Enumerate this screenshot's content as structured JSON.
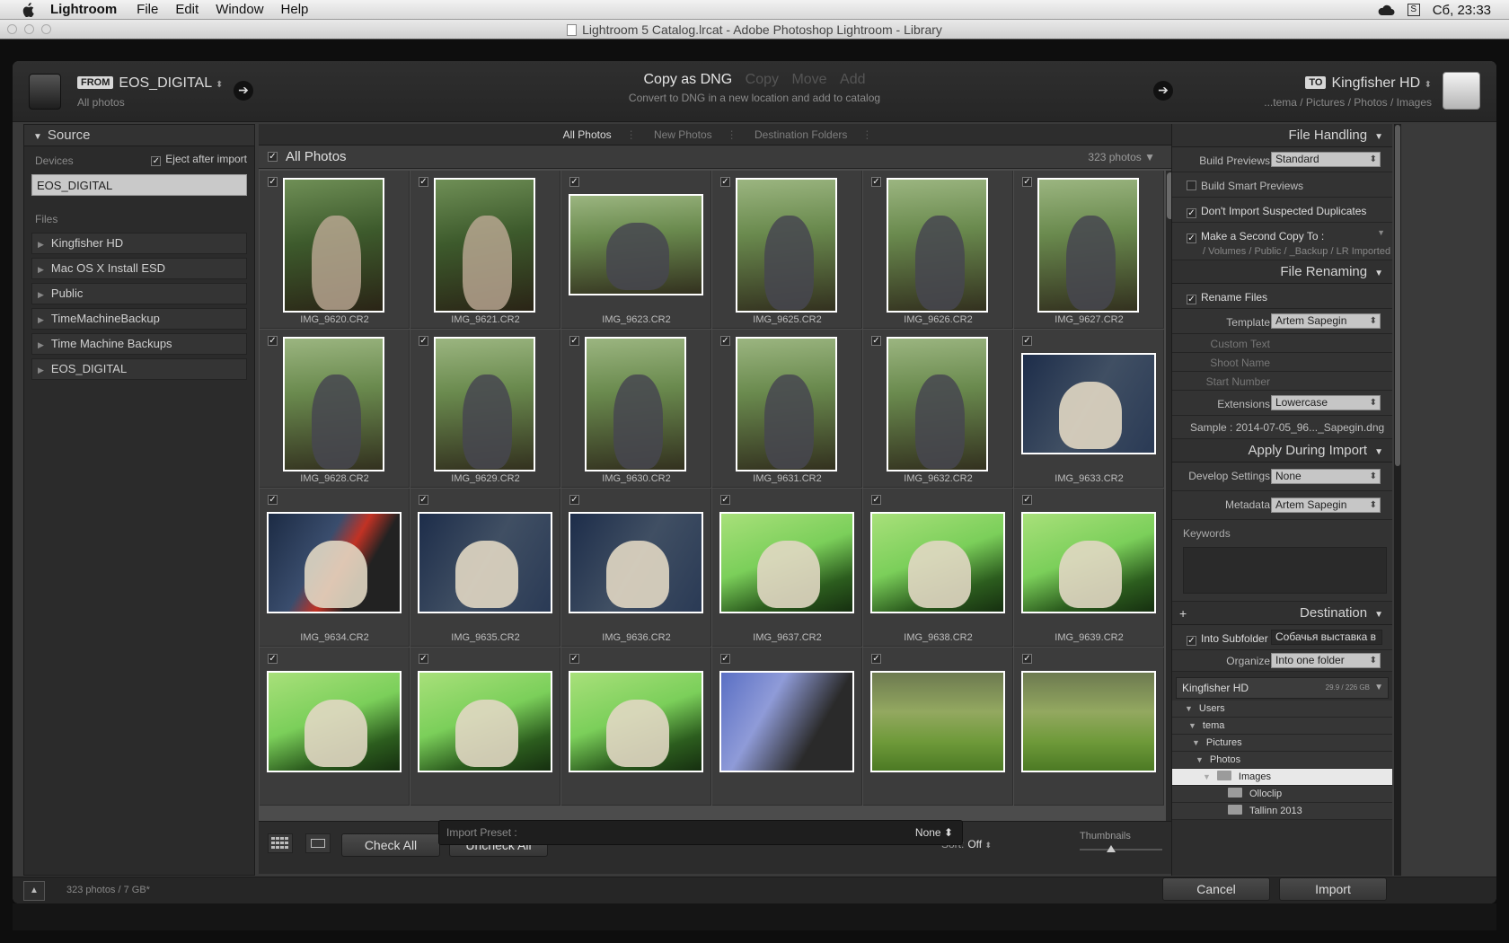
{
  "menubar": {
    "app": "Lightroom",
    "items": [
      "File",
      "Edit",
      "Window",
      "Help"
    ],
    "clock": "Сб, 23:33"
  },
  "window_title": "Lightroom 5 Catalog.lrcat - Adobe Photoshop Lightroom - Library",
  "topbar": {
    "from_tag": "FROM",
    "from_name": "EOS_DIGITAL",
    "from_sub": "All photos",
    "to_tag": "TO",
    "to_name": "Kingfisher HD",
    "to_path": "...tema / Pictures / Photos / Images",
    "modes": [
      "Copy as DNG",
      "Copy",
      "Move",
      "Add"
    ],
    "active_mode": "Copy as DNG",
    "mode_desc": "Convert to DNG in a new location and add to catalog"
  },
  "source": {
    "title": "Source",
    "devices_label": "Devices",
    "eject_label": "Eject after import",
    "eject_checked": true,
    "device": "EOS_DIGITAL",
    "files_label": "Files",
    "files": [
      "Kingfisher HD",
      "Mac OS X Install ESD",
      "Public",
      "TimeMachineBackup",
      "Time Machine Backups",
      "EOS_DIGITAL"
    ]
  },
  "grid": {
    "tabs": [
      "All Photos",
      "New Photos",
      "Destination Folders"
    ],
    "active_tab": "All Photos",
    "header": "All Photos",
    "count": "323 photos",
    "photos": [
      {
        "name": "IMG_9620.CR2",
        "orient": "p",
        "scene": "c-park",
        "subject": "woman"
      },
      {
        "name": "IMG_9621.CR2",
        "orient": "p",
        "scene": "c-park",
        "subject": "woman"
      },
      {
        "name": "IMG_9623.CR2",
        "orient": "l",
        "scene": "c-park2",
        "subject": "dog-dark"
      },
      {
        "name": "IMG_9625.CR2",
        "orient": "p",
        "scene": "c-park2",
        "subject": "dog-dark"
      },
      {
        "name": "IMG_9626.CR2",
        "orient": "p",
        "scene": "c-park2",
        "subject": "dog-dark"
      },
      {
        "name": "IMG_9627.CR2",
        "orient": "p",
        "scene": "c-park2",
        "subject": "dog-dark"
      },
      {
        "name": "IMG_9628.CR2",
        "orient": "p",
        "scene": "c-park2",
        "subject": "dog-dark"
      },
      {
        "name": "IMG_9629.CR2",
        "orient": "p",
        "scene": "c-park2",
        "subject": "dog-dark"
      },
      {
        "name": "IMG_9630.CR2",
        "orient": "p",
        "scene": "c-park2",
        "subject": "dog-dark"
      },
      {
        "name": "IMG_9631.CR2",
        "orient": "p",
        "scene": "c-park2",
        "subject": "dog-dark"
      },
      {
        "name": "IMG_9632.CR2",
        "orient": "p",
        "scene": "c-park2",
        "subject": "dog-dark"
      },
      {
        "name": "IMG_9633.CR2",
        "orient": "l",
        "scene": "c-blue",
        "subject": "dog-white"
      },
      {
        "name": "IMG_9634.CR2",
        "orient": "l",
        "scene": "c-red",
        "subject": "dog-white"
      },
      {
        "name": "IMG_9635.CR2",
        "orient": "l",
        "scene": "c-blue",
        "subject": "dog-white"
      },
      {
        "name": "IMG_9636.CR2",
        "orient": "l",
        "scene": "c-blue",
        "subject": "dog-white"
      },
      {
        "name": "IMG_9637.CR2",
        "orient": "l",
        "scene": "c-green",
        "subject": "dog-white"
      },
      {
        "name": "IMG_9638.CR2",
        "orient": "l",
        "scene": "c-green",
        "subject": "dog-white"
      },
      {
        "name": "IMG_9639.CR2",
        "orient": "l",
        "scene": "c-green",
        "subject": "dog-white"
      },
      {
        "name": "",
        "orient": "l",
        "scene": "c-green",
        "subject": "dog-white"
      },
      {
        "name": "",
        "orient": "l",
        "scene": "c-green",
        "subject": "dog-white"
      },
      {
        "name": "",
        "orient": "l",
        "scene": "c-green",
        "subject": "dog-white"
      },
      {
        "name": "",
        "orient": "l",
        "scene": "c-hand",
        "subject": "none"
      },
      {
        "name": "",
        "orient": "l",
        "scene": "c-lawn",
        "subject": "none"
      },
      {
        "name": "",
        "orient": "l",
        "scene": "c-lawn",
        "subject": "none"
      }
    ],
    "check_all": "Check All",
    "uncheck_all": "Uncheck All",
    "sort_label": "Sort:",
    "sort_value": "Off",
    "thumbnails_label": "Thumbnails"
  },
  "right": {
    "file_handling": "File Handling",
    "build_previews_label": "Build Previews",
    "build_previews_value": "Standard",
    "smart_previews": "Build Smart Previews",
    "no_duplicates": "Don't Import Suspected Duplicates",
    "second_copy": "Make a Second Copy To :",
    "second_copy_path": "/ Volumes / Public / _Backup / LR Imported",
    "file_renaming": "File Renaming",
    "rename_files": "Rename Files",
    "template_label": "Template",
    "template_value": "Artem Sapegin",
    "custom_text": "Custom Text",
    "shoot_name": "Shoot Name",
    "start_number": "Start Number",
    "extensions_label": "Extensions",
    "extensions_value": "Lowercase",
    "sample_label": "Sample :",
    "sample_value": "2014-07-05_96..._Sapegin.dng",
    "apply_during_import": "Apply During Import",
    "develop_label": "Develop Settings",
    "develop_value": "None",
    "metadata_label": "Metadata",
    "metadata_value": "Artem Sapegin",
    "keywords_label": "Keywords",
    "destination": "Destination",
    "into_subfolder": "Into Subfolder",
    "subfolder_value": "Собачья выставка в",
    "organize_label": "Organize",
    "organize_value": "Into one folder",
    "volume_name": "Kingfisher HD",
    "volume_space": "29.9 / 226 GB",
    "tree": [
      "Users",
      "tema",
      "Pictures",
      "Photos",
      "Images",
      "Olloclip",
      "Tallinn 2013"
    ]
  },
  "bottom": {
    "status": "323 photos / 7 GB*",
    "preset_label": "Import Preset :",
    "preset_value": "None",
    "cancel": "Cancel",
    "import": "Import"
  }
}
